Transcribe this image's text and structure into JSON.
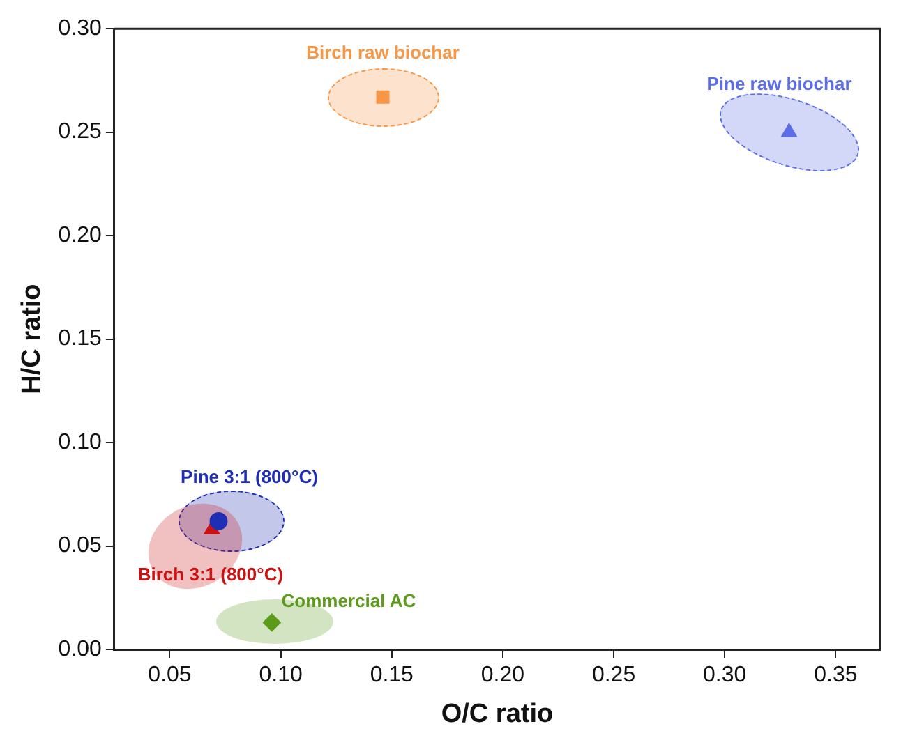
{
  "chart_data": {
    "type": "scatter",
    "xlabel": "O/C ratio",
    "ylabel": "H/C ratio",
    "xlim": [
      0.025,
      0.37
    ],
    "xticks": [
      0.05,
      {
        "value": 0.1,
        "label": "0.10"
      },
      0.15,
      {
        "value": 0.2,
        "label": "0.20"
      },
      0.25,
      {
        "value": 0.3,
        "label": "0.30"
      },
      0.35
    ],
    "ylim": [
      0,
      0.3
    ],
    "yticks": [
      {
        "value": 0,
        "label": "0.00"
      },
      0.05,
      {
        "value": 0.1,
        "label": "0.10"
      },
      0.15,
      {
        "value": 0.2,
        "label": "0.20"
      },
      0.25,
      {
        "value": 0.3,
        "label": "0.30"
      }
    ],
    "grid": false,
    "legend": false,
    "series": [
      {
        "color": "#f79646",
        "marker": "square",
        "x": [
          0.146
        ],
        "values": [
          0.267
        ]
      },
      {
        "color": "#5b6ee8",
        "marker": "triangle",
        "x": [
          0.329
        ],
        "values": [
          0.25
        ]
      },
      {
        "color": "#1f2fb5",
        "marker": "circle",
        "x": [
          0.072
        ],
        "values": [
          0.062
        ]
      },
      {
        "color": "#cc1111",
        "marker": "triangle",
        "x": [
          0.069
        ],
        "values": [
          0.058
        ]
      },
      {
        "color": "#5b9a1a",
        "marker": "diamond",
        "x": [
          0.096
        ],
        "values": [
          0.013
        ]
      }
    ],
    "annotations": [
      "Birch raw biochar",
      "Pine raw biochar",
      "Pine 3:1 (800°C)",
      "Birch 3:1 (800°C)",
      "Commercial AC"
    ]
  }
}
